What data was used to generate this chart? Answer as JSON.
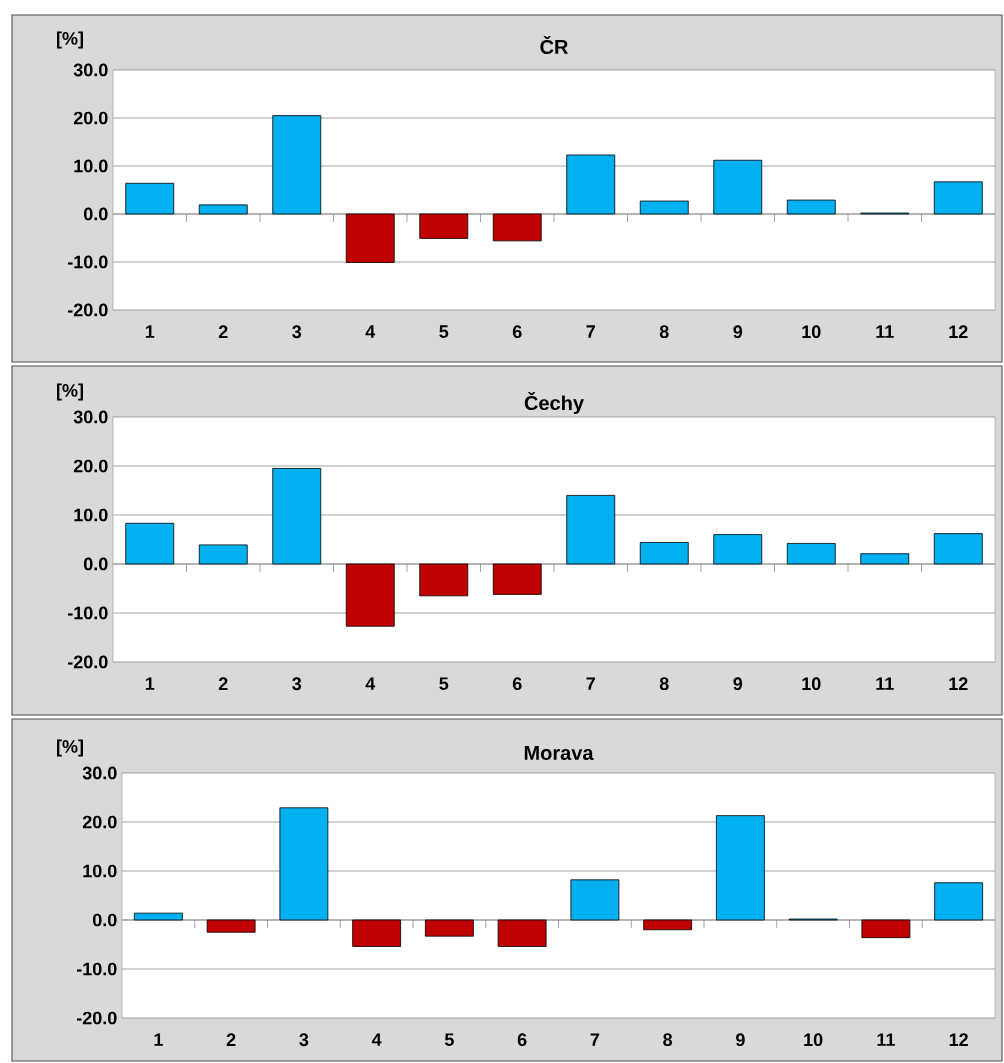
{
  "chart_data": [
    {
      "type": "bar",
      "title": "ČR",
      "ylabel": "[%]",
      "categories": [
        "1",
        "2",
        "3",
        "4",
        "5",
        "6",
        "7",
        "8",
        "9",
        "10",
        "11",
        "12"
      ],
      "values": [
        6.4,
        1.9,
        20.5,
        -10.1,
        -5.1,
        -5.6,
        12.3,
        2.7,
        11.2,
        2.9,
        0.2,
        6.7
      ],
      "colors": [
        "#00b0f0",
        "#00b0f0",
        "#00b0f0",
        "#c00000",
        "#c00000",
        "#c00000",
        "#00b0f0",
        "#00b0f0",
        "#00b0f0",
        "#00b0f0",
        "#00b0f0",
        "#00b0f0"
      ],
      "ylim": [
        -20,
        30
      ],
      "yticks": [
        {
          "value": -20,
          "label": "-20.0"
        },
        {
          "value": -10,
          "label": "-10.0"
        },
        {
          "value": 0,
          "label": "0.0"
        },
        {
          "value": 10,
          "label": "10.0"
        },
        {
          "value": 20,
          "label": "20.0"
        },
        {
          "value": 30,
          "label": "30.0"
        }
      ],
      "grid": "y"
    },
    {
      "type": "bar",
      "title": "Čechy",
      "ylabel": "[%]",
      "categories": [
        "1",
        "2",
        "3",
        "4",
        "5",
        "6",
        "7",
        "8",
        "9",
        "10",
        "11",
        "12"
      ],
      "values": [
        8.3,
        3.9,
        19.5,
        -12.7,
        -6.5,
        -6.2,
        14.0,
        4.4,
        6.0,
        4.2,
        2.1,
        6.2
      ],
      "colors": [
        "#00b0f0",
        "#00b0f0",
        "#00b0f0",
        "#c00000",
        "#c00000",
        "#c00000",
        "#00b0f0",
        "#00b0f0",
        "#00b0f0",
        "#00b0f0",
        "#00b0f0",
        "#00b0f0"
      ],
      "ylim": [
        -20,
        30
      ],
      "yticks": [
        {
          "value": -20,
          "label": "-20.0"
        },
        {
          "value": -10,
          "label": "-10.0"
        },
        {
          "value": 0,
          "label": "0.0"
        },
        {
          "value": 10,
          "label": "10.0"
        },
        {
          "value": 20,
          "label": "20.0"
        },
        {
          "value": 30,
          "label": "30.0"
        }
      ],
      "grid": "y"
    },
    {
      "type": "bar",
      "title": "Morava",
      "ylabel": "[%]",
      "categories": [
        "1",
        "2",
        "3",
        "4",
        "5",
        "6",
        "7",
        "8",
        "9",
        "10",
        "11",
        "12"
      ],
      "values": [
        1.4,
        -2.5,
        22.9,
        -5.4,
        -3.3,
        -5.4,
        8.2,
        -2.0,
        21.3,
        0.2,
        -3.6,
        7.6
      ],
      "colors": [
        "#00b0f0",
        "#c00000",
        "#00b0f0",
        "#c00000",
        "#c00000",
        "#c00000",
        "#00b0f0",
        "#c00000",
        "#00b0f0",
        "#00b0f0",
        "#c00000",
        "#00b0f0"
      ],
      "ylim": [
        -20,
        30
      ],
      "yticks": [
        {
          "value": -20,
          "label": "-20.0"
        },
        {
          "value": -10,
          "label": "-10.0"
        },
        {
          "value": 0,
          "label": "0.0"
        },
        {
          "value": 10,
          "label": "10.0"
        },
        {
          "value": 20,
          "label": "20.0"
        },
        {
          "value": 30,
          "label": "30.0"
        }
      ],
      "grid": "y"
    }
  ]
}
